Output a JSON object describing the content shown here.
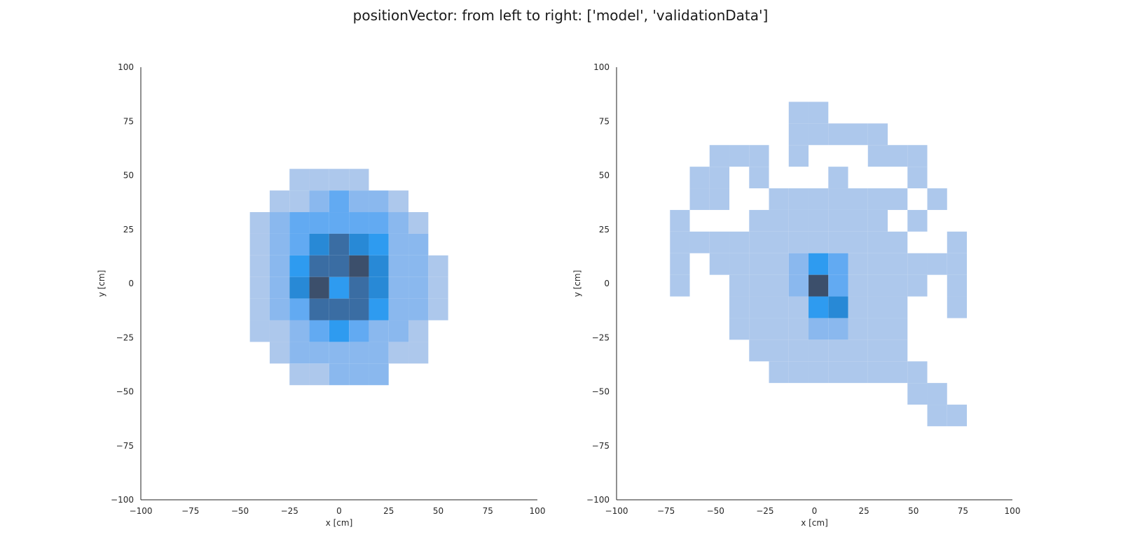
{
  "figure": {
    "title": "positionVector: from left to right: ['model', 'validationData']"
  },
  "colors": {
    "light": "#adc8ec",
    "mid": "#8ab8ee",
    "medium": "#62aaf2",
    "bright": "#2e9bf0",
    "teal": "#2889d6",
    "steel": "#3a6da3",
    "dark": "#3c4f6b",
    "axis": "#222222",
    "text": "#262626"
  },
  "chart_data": [
    {
      "type": "heatmap",
      "name": "model",
      "xlabel": "x [cm]",
      "ylabel": "y [cm]",
      "xlim": [
        -100,
        100
      ],
      "ylim": [
        -100,
        100
      ],
      "xticks": [
        -100,
        -75,
        -50,
        -25,
        0,
        25,
        50,
        75,
        100
      ],
      "yticks": [
        -100,
        -75,
        -50,
        -25,
        0,
        25,
        50,
        75,
        100
      ],
      "xtick_labels": [
        "−100",
        "−75",
        "−50",
        "−25",
        "0",
        "25",
        "50",
        "75",
        "100"
      ],
      "ytick_labels": [
        "−100",
        "−75",
        "−50",
        "−25",
        "0",
        "25",
        "50",
        "75",
        "100"
      ],
      "grid": false,
      "bin_width": 10,
      "bin_height": 10,
      "cells": [
        {
          "x": -25,
          "y": 43,
          "level": 1
        },
        {
          "x": -15,
          "y": 43,
          "level": 1
        },
        {
          "x": -5,
          "y": 43,
          "level": 1
        },
        {
          "x": 5,
          "y": 43,
          "level": 1
        },
        {
          "x": -35,
          "y": 33,
          "level": 1
        },
        {
          "x": -25,
          "y": 33,
          "level": 1
        },
        {
          "x": -15,
          "y": 33,
          "level": 2
        },
        {
          "x": -5,
          "y": 33,
          "level": 3
        },
        {
          "x": 5,
          "y": 33,
          "level": 2
        },
        {
          "x": 15,
          "y": 33,
          "level": 2
        },
        {
          "x": 25,
          "y": 33,
          "level": 1
        },
        {
          "x": -45,
          "y": 23,
          "level": 1
        },
        {
          "x": -35,
          "y": 23,
          "level": 2
        },
        {
          "x": -25,
          "y": 23,
          "level": 3
        },
        {
          "x": -15,
          "y": 23,
          "level": 3
        },
        {
          "x": -5,
          "y": 23,
          "level": 3
        },
        {
          "x": 5,
          "y": 23,
          "level": 3
        },
        {
          "x": 15,
          "y": 23,
          "level": 3
        },
        {
          "x": 25,
          "y": 23,
          "level": 2
        },
        {
          "x": 35,
          "y": 23,
          "level": 1
        },
        {
          "x": -45,
          "y": 13,
          "level": 1
        },
        {
          "x": -35,
          "y": 13,
          "level": 2
        },
        {
          "x": -25,
          "y": 13,
          "level": 3
        },
        {
          "x": -15,
          "y": 13,
          "level": 5
        },
        {
          "x": -5,
          "y": 13,
          "level": 6
        },
        {
          "x": 5,
          "y": 13,
          "level": 5
        },
        {
          "x": 15,
          "y": 13,
          "level": 4
        },
        {
          "x": 25,
          "y": 13,
          "level": 2
        },
        {
          "x": 35,
          "y": 13,
          "level": 2
        },
        {
          "x": -45,
          "y": 3,
          "level": 1
        },
        {
          "x": -35,
          "y": 3,
          "level": 2
        },
        {
          "x": -25,
          "y": 3,
          "level": 4
        },
        {
          "x": -15,
          "y": 3,
          "level": 6
        },
        {
          "x": -5,
          "y": 3,
          "level": 6
        },
        {
          "x": 5,
          "y": 3,
          "level": 7
        },
        {
          "x": 15,
          "y": 3,
          "level": 5
        },
        {
          "x": 25,
          "y": 3,
          "level": 2
        },
        {
          "x": 35,
          "y": 3,
          "level": 2
        },
        {
          "x": 45,
          "y": 3,
          "level": 1
        },
        {
          "x": -45,
          "y": -7,
          "level": 1
        },
        {
          "x": -35,
          "y": -7,
          "level": 2
        },
        {
          "x": -25,
          "y": -7,
          "level": 5
        },
        {
          "x": -15,
          "y": -7,
          "level": 7
        },
        {
          "x": -5,
          "y": -7,
          "level": 4
        },
        {
          "x": 5,
          "y": -7,
          "level": 6
        },
        {
          "x": 15,
          "y": -7,
          "level": 5
        },
        {
          "x": 25,
          "y": -7,
          "level": 2
        },
        {
          "x": 35,
          "y": -7,
          "level": 2
        },
        {
          "x": 45,
          "y": -7,
          "level": 1
        },
        {
          "x": -45,
          "y": -17,
          "level": 1
        },
        {
          "x": -35,
          "y": -17,
          "level": 2
        },
        {
          "x": -25,
          "y": -17,
          "level": 3
        },
        {
          "x": -15,
          "y": -17,
          "level": 6
        },
        {
          "x": -5,
          "y": -17,
          "level": 6
        },
        {
          "x": 5,
          "y": -17,
          "level": 6
        },
        {
          "x": 15,
          "y": -17,
          "level": 4
        },
        {
          "x": 25,
          "y": -17,
          "level": 2
        },
        {
          "x": 35,
          "y": -17,
          "level": 2
        },
        {
          "x": 45,
          "y": -17,
          "level": 1
        },
        {
          "x": -45,
          "y": -27,
          "level": 1
        },
        {
          "x": -35,
          "y": -27,
          "level": 1
        },
        {
          "x": -25,
          "y": -27,
          "level": 2
        },
        {
          "x": -15,
          "y": -27,
          "level": 3
        },
        {
          "x": -5,
          "y": -27,
          "level": 4
        },
        {
          "x": 5,
          "y": -27,
          "level": 3
        },
        {
          "x": 15,
          "y": -27,
          "level": 2
        },
        {
          "x": 25,
          "y": -27,
          "level": 2
        },
        {
          "x": 35,
          "y": -27,
          "level": 1
        },
        {
          "x": -35,
          "y": -37,
          "level": 1
        },
        {
          "x": -25,
          "y": -37,
          "level": 2
        },
        {
          "x": -15,
          "y": -37,
          "level": 2
        },
        {
          "x": -5,
          "y": -37,
          "level": 2
        },
        {
          "x": 5,
          "y": -37,
          "level": 2
        },
        {
          "x": 15,
          "y": -37,
          "level": 2
        },
        {
          "x": 25,
          "y": -37,
          "level": 1
        },
        {
          "x": 35,
          "y": -37,
          "level": 1
        },
        {
          "x": -25,
          "y": -47,
          "level": 1
        },
        {
          "x": -15,
          "y": -47,
          "level": 1
        },
        {
          "x": -5,
          "y": -47,
          "level": 2
        },
        {
          "x": 5,
          "y": -47,
          "level": 2
        },
        {
          "x": 15,
          "y": -47,
          "level": 2
        }
      ]
    },
    {
      "type": "heatmap",
      "name": "validationData",
      "xlabel": "x [cm]",
      "ylabel": "y [cm]",
      "xlim": [
        -100,
        100
      ],
      "ylim": [
        -100,
        100
      ],
      "xticks": [
        -100,
        -75,
        -50,
        -25,
        0,
        25,
        50,
        75,
        100
      ],
      "yticks": [
        -100,
        -75,
        -50,
        -25,
        0,
        25,
        50,
        75,
        100
      ],
      "xtick_labels": [
        "−100",
        "−75",
        "−50",
        "−25",
        "0",
        "25",
        "50",
        "75",
        "100"
      ],
      "ytick_labels": [
        "−100",
        "−75",
        "−50",
        "−25",
        "0",
        "25",
        "50",
        "75",
        "100"
      ],
      "grid": false,
      "bin_width": 10,
      "bin_height": 10,
      "cells": [
        {
          "x": -13,
          "y": 74,
          "level": 1
        },
        {
          "x": -3,
          "y": 74,
          "level": 1
        },
        {
          "x": -13,
          "y": 64,
          "level": 1
        },
        {
          "x": -3,
          "y": 64,
          "level": 1
        },
        {
          "x": 7,
          "y": 64,
          "level": 1
        },
        {
          "x": 17,
          "y": 64,
          "level": 1
        },
        {
          "x": 27,
          "y": 64,
          "level": 1
        },
        {
          "x": -53,
          "y": 54,
          "level": 1
        },
        {
          "x": -43,
          "y": 54,
          "level": 1
        },
        {
          "x": -33,
          "y": 54,
          "level": 1
        },
        {
          "x": -13,
          "y": 54,
          "level": 1
        },
        {
          "x": 27,
          "y": 54,
          "level": 1
        },
        {
          "x": 37,
          "y": 54,
          "level": 1
        },
        {
          "x": 47,
          "y": 54,
          "level": 1
        },
        {
          "x": -63,
          "y": 44,
          "level": 1
        },
        {
          "x": -53,
          "y": 44,
          "level": 1
        },
        {
          "x": -33,
          "y": 44,
          "level": 1
        },
        {
          "x": 7,
          "y": 44,
          "level": 1
        },
        {
          "x": 47,
          "y": 44,
          "level": 1
        },
        {
          "x": -63,
          "y": 34,
          "level": 1
        },
        {
          "x": -53,
          "y": 34,
          "level": 1
        },
        {
          "x": -23,
          "y": 34,
          "level": 1
        },
        {
          "x": -13,
          "y": 34,
          "level": 1
        },
        {
          "x": -3,
          "y": 34,
          "level": 1
        },
        {
          "x": 7,
          "y": 34,
          "level": 1
        },
        {
          "x": 17,
          "y": 34,
          "level": 1
        },
        {
          "x": 27,
          "y": 34,
          "level": 1
        },
        {
          "x": 37,
          "y": 34,
          "level": 1
        },
        {
          "x": 57,
          "y": 34,
          "level": 1
        },
        {
          "x": -73,
          "y": 24,
          "level": 1
        },
        {
          "x": -33,
          "y": 24,
          "level": 1
        },
        {
          "x": -23,
          "y": 24,
          "level": 1
        },
        {
          "x": -13,
          "y": 24,
          "level": 1
        },
        {
          "x": -3,
          "y": 24,
          "level": 1
        },
        {
          "x": 7,
          "y": 24,
          "level": 1
        },
        {
          "x": 17,
          "y": 24,
          "level": 1
        },
        {
          "x": 27,
          "y": 24,
          "level": 1
        },
        {
          "x": 47,
          "y": 24,
          "level": 1
        },
        {
          "x": -73,
          "y": 14,
          "level": 1
        },
        {
          "x": -63,
          "y": 14,
          "level": 1
        },
        {
          "x": -53,
          "y": 14,
          "level": 1
        },
        {
          "x": -43,
          "y": 14,
          "level": 1
        },
        {
          "x": -33,
          "y": 14,
          "level": 1
        },
        {
          "x": -23,
          "y": 14,
          "level": 1
        },
        {
          "x": -13,
          "y": 14,
          "level": 1
        },
        {
          "x": -3,
          "y": 14,
          "level": 1
        },
        {
          "x": 7,
          "y": 14,
          "level": 1
        },
        {
          "x": 17,
          "y": 14,
          "level": 1
        },
        {
          "x": 27,
          "y": 14,
          "level": 1
        },
        {
          "x": 37,
          "y": 14,
          "level": 1
        },
        {
          "x": 67,
          "y": 14,
          "level": 1
        },
        {
          "x": -73,
          "y": 4,
          "level": 1
        },
        {
          "x": -53,
          "y": 4,
          "level": 1
        },
        {
          "x": -43,
          "y": 4,
          "level": 1
        },
        {
          "x": -33,
          "y": 4,
          "level": 1
        },
        {
          "x": -23,
          "y": 4,
          "level": 1
        },
        {
          "x": -13,
          "y": 4,
          "level": 2
        },
        {
          "x": -3,
          "y": 4,
          "level": 4
        },
        {
          "x": 7,
          "y": 4,
          "level": 3
        },
        {
          "x": 17,
          "y": 4,
          "level": 1
        },
        {
          "x": 27,
          "y": 4,
          "level": 1
        },
        {
          "x": 37,
          "y": 4,
          "level": 1
        },
        {
          "x": 47,
          "y": 4,
          "level": 1
        },
        {
          "x": 57,
          "y": 4,
          "level": 1
        },
        {
          "x": 67,
          "y": 4,
          "level": 1
        },
        {
          "x": -73,
          "y": -6,
          "level": 1
        },
        {
          "x": -43,
          "y": -6,
          "level": 1
        },
        {
          "x": -33,
          "y": -6,
          "level": 1
        },
        {
          "x": -23,
          "y": -6,
          "level": 1
        },
        {
          "x": -13,
          "y": -6,
          "level": 2
        },
        {
          "x": -3,
          "y": -6,
          "level": 7
        },
        {
          "x": 7,
          "y": -6,
          "level": 3
        },
        {
          "x": 17,
          "y": -6,
          "level": 1
        },
        {
          "x": 27,
          "y": -6,
          "level": 1
        },
        {
          "x": 37,
          "y": -6,
          "level": 1
        },
        {
          "x": 47,
          "y": -6,
          "level": 1
        },
        {
          "x": 67,
          "y": -6,
          "level": 1
        },
        {
          "x": -43,
          "y": -16,
          "level": 1
        },
        {
          "x": -33,
          "y": -16,
          "level": 1
        },
        {
          "x": -23,
          "y": -16,
          "level": 1
        },
        {
          "x": -13,
          "y": -16,
          "level": 1
        },
        {
          "x": -3,
          "y": -16,
          "level": 4
        },
        {
          "x": 7,
          "y": -16,
          "level": 5
        },
        {
          "x": 17,
          "y": -16,
          "level": 1
        },
        {
          "x": 27,
          "y": -16,
          "level": 1
        },
        {
          "x": 37,
          "y": -16,
          "level": 1
        },
        {
          "x": 67,
          "y": -16,
          "level": 1
        },
        {
          "x": -43,
          "y": -26,
          "level": 1
        },
        {
          "x": -33,
          "y": -26,
          "level": 1
        },
        {
          "x": -23,
          "y": -26,
          "level": 1
        },
        {
          "x": -13,
          "y": -26,
          "level": 1
        },
        {
          "x": -3,
          "y": -26,
          "level": 2
        },
        {
          "x": 7,
          "y": -26,
          "level": 2
        },
        {
          "x": 17,
          "y": -26,
          "level": 1
        },
        {
          "x": 27,
          "y": -26,
          "level": 1
        },
        {
          "x": 37,
          "y": -26,
          "level": 1
        },
        {
          "x": -33,
          "y": -36,
          "level": 1
        },
        {
          "x": -23,
          "y": -36,
          "level": 1
        },
        {
          "x": -13,
          "y": -36,
          "level": 1
        },
        {
          "x": -3,
          "y": -36,
          "level": 1
        },
        {
          "x": 7,
          "y": -36,
          "level": 1
        },
        {
          "x": 17,
          "y": -36,
          "level": 1
        },
        {
          "x": 27,
          "y": -36,
          "level": 1
        },
        {
          "x": 37,
          "y": -36,
          "level": 1
        },
        {
          "x": -23,
          "y": -46,
          "level": 1
        },
        {
          "x": -13,
          "y": -46,
          "level": 1
        },
        {
          "x": -3,
          "y": -46,
          "level": 1
        },
        {
          "x": 7,
          "y": -46,
          "level": 1
        },
        {
          "x": 17,
          "y": -46,
          "level": 1
        },
        {
          "x": 27,
          "y": -46,
          "level": 1
        },
        {
          "x": 37,
          "y": -46,
          "level": 1
        },
        {
          "x": 47,
          "y": -46,
          "level": 1
        },
        {
          "x": 47,
          "y": -56,
          "level": 1
        },
        {
          "x": 57,
          "y": -56,
          "level": 1
        },
        {
          "x": 57,
          "y": -66,
          "level": 1
        },
        {
          "x": 67,
          "y": -66,
          "level": 1
        }
      ]
    }
  ]
}
